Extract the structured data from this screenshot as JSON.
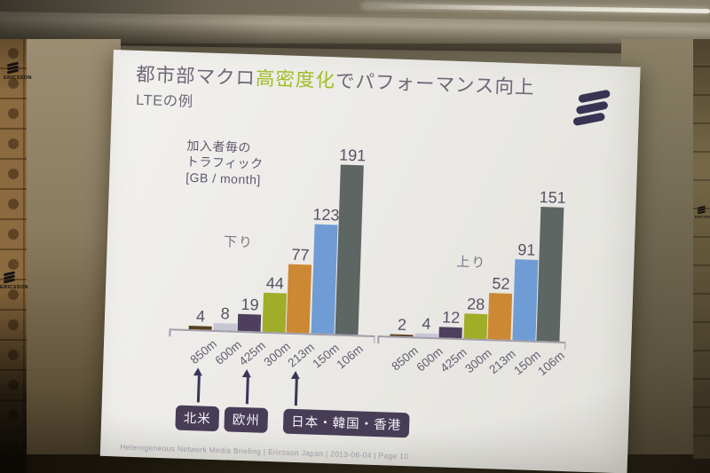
{
  "scene": {
    "backdrop_brand": "ERICSSON"
  },
  "slide": {
    "title_pre": "都市部マクロ",
    "title_highlight": "高密度化",
    "title_post": "でパフォーマンス向上",
    "subtitle": "LTEの例",
    "y_axis_label_lines": [
      "加入者毎の",
      "トラフィック",
      "[GB / month]"
    ],
    "footer": "Heterogeneous Network Media Briefing | Ericsson Japan | 2013-06-04 | Page 10"
  },
  "chart_data": {
    "type": "bar",
    "categories": [
      "850m",
      "600m",
      "425m",
      "300m",
      "213m",
      "150m",
      "106m"
    ],
    "series": [
      {
        "name": "下り",
        "values": [
          4,
          8,
          19,
          44,
          77,
          123,
          191
        ]
      },
      {
        "name": "上り",
        "values": [
          2,
          4,
          12,
          28,
          52,
          91,
          151
        ]
      }
    ],
    "ylabel": "加入者毎のトラフィック [GB / month]",
    "ylim": [
      0,
      200
    ],
    "grid": false,
    "value_labels_shown": true,
    "bar_colors": [
      "#5a401f",
      "#c7c6d2",
      "#4e3f5e",
      "#9fad28",
      "#cc8833",
      "#6f9cd4",
      "#5d6663"
    ],
    "annotations": [
      {
        "label": "北米",
        "category": "850m",
        "series": "下り"
      },
      {
        "label": "欧州",
        "category": "425m",
        "series": "下り"
      },
      {
        "label": "日本・韓国・香港",
        "category": "213m",
        "series": "下り"
      }
    ]
  }
}
